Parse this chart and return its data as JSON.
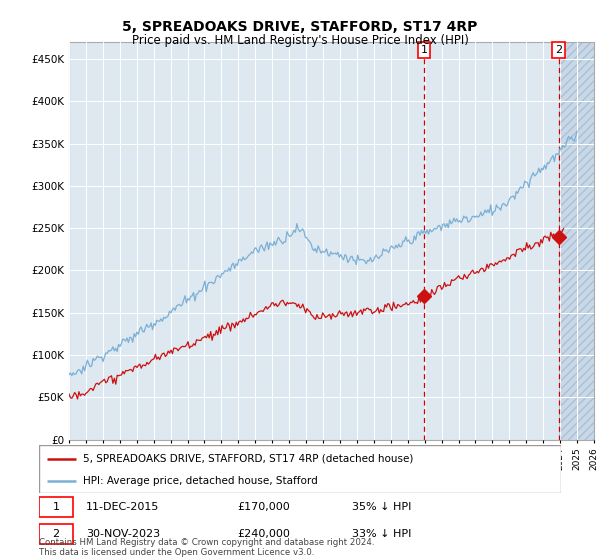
{
  "title": "5, SPREADOAKS DRIVE, STAFFORD, ST17 4RP",
  "subtitle": "Price paid vs. HM Land Registry's House Price Index (HPI)",
  "ylim": [
    0,
    470000
  ],
  "xlim_start": 1995.0,
  "xlim_end": 2026.0,
  "hpi_color": "#7bafd4",
  "price_color": "#cc1111",
  "vline_color": "#cc0000",
  "plot_bg_color": "#dde8f0",
  "marker1_x": 2015.96,
  "marker1_y": 170000,
  "marker2_x": 2023.92,
  "marker2_y": 240000,
  "legend_line1": "5, SPREADOAKS DRIVE, STAFFORD, ST17 4RP (detached house)",
  "legend_line2": "HPI: Average price, detached house, Stafford",
  "marker1_date": "11-DEC-2015",
  "marker1_price": "£170,000",
  "marker1_hpi": "35% ↓ HPI",
  "marker2_date": "30-NOV-2023",
  "marker2_price": "£240,000",
  "marker2_hpi": "33% ↓ HPI",
  "footer": "Contains HM Land Registry data © Crown copyright and database right 2024.\nThis data is licensed under the Open Government Licence v3.0.",
  "yticks": [
    0,
    50000,
    100000,
    150000,
    200000,
    250000,
    300000,
    350000,
    400000,
    450000
  ],
  "ytick_labels": [
    "£0",
    "£50K",
    "£100K",
    "£150K",
    "£200K",
    "£250K",
    "£300K",
    "£350K",
    "£400K",
    "£450K"
  ]
}
